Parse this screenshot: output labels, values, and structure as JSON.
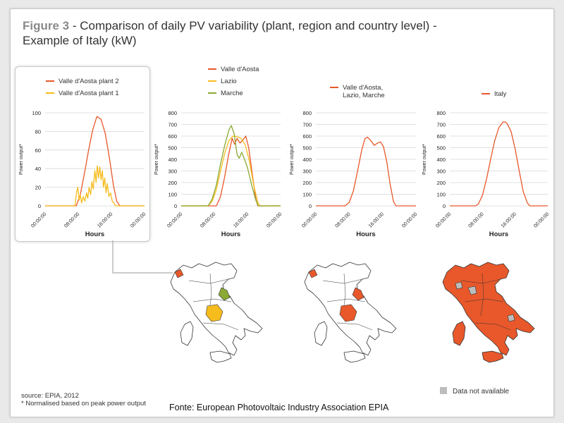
{
  "title": {
    "figure_label": "Figure 3",
    "text": " - Comparison of daily PV variability (plant, region and country level) - Example of Italy (kW)"
  },
  "colors": {
    "orange": "#e8582a",
    "yellow": "#f6bc1d",
    "green": "#8aaa33",
    "gray": "#bdbdbd",
    "grid": "#d6d6d6"
  },
  "chart_data": [
    {
      "type": "line",
      "legend": [
        "Valle d'Aosta plant 2",
        "Valle d'Aosta plant 1"
      ],
      "ylabel": "Power output*",
      "xlabel": "Hours",
      "ylim": [
        0,
        100
      ],
      "yticks": [
        0,
        20,
        40,
        60,
        80,
        100
      ],
      "xticks": [
        "00:00:00",
        "08:00:00",
        "16:00:00",
        "00:00:00"
      ],
      "series": [
        {
          "name": "Valle d'Aosta plant 2",
          "color": "orange",
          "points": [
            [
              0,
              0
            ],
            [
              7.5,
              0
            ],
            [
              8.5,
              12
            ],
            [
              9.5,
              35
            ],
            [
              10.5,
              60
            ],
            [
              11.5,
              82
            ],
            [
              12.5,
              96
            ],
            [
              13.5,
              93
            ],
            [
              14.5,
              78
            ],
            [
              15.5,
              52
            ],
            [
              16.5,
              22
            ],
            [
              17.3,
              5
            ],
            [
              18,
              0
            ],
            [
              24,
              0
            ]
          ]
        },
        {
          "name": "Valle d'Aosta plant 1",
          "color": "yellow",
          "points": [
            [
              0,
              0
            ],
            [
              7.2,
              0
            ],
            [
              7.6,
              15
            ],
            [
              7.9,
              20
            ],
            [
              8.2,
              6
            ],
            [
              8.5,
              12
            ],
            [
              8.8,
              3
            ],
            [
              9.2,
              10
            ],
            [
              9.6,
              5
            ],
            [
              10,
              14
            ],
            [
              10.3,
              8
            ],
            [
              10.6,
              20
            ],
            [
              11,
              12
            ],
            [
              11.3,
              26
            ],
            [
              11.6,
              18
            ],
            [
              12,
              38
            ],
            [
              12.3,
              25
            ],
            [
              12.6,
              43
            ],
            [
              12.9,
              30
            ],
            [
              13.2,
              42
            ],
            [
              13.5,
              28
            ],
            [
              13.8,
              38
            ],
            [
              14.1,
              20
            ],
            [
              14.4,
              30
            ],
            [
              14.7,
              14
            ],
            [
              15,
              24
            ],
            [
              15.4,
              10
            ],
            [
              15.8,
              14
            ],
            [
              16.2,
              5
            ],
            [
              16.6,
              3
            ],
            [
              17,
              0
            ],
            [
              24,
              0
            ]
          ]
        }
      ]
    },
    {
      "type": "line",
      "legend": [
        "Valle d'Aosta",
        "Lazio",
        "Marche"
      ],
      "ylabel": "Power output*",
      "xlabel": "Hours",
      "ylim": [
        0,
        800
      ],
      "yticks": [
        0,
        100,
        200,
        300,
        400,
        500,
        600,
        700,
        800
      ],
      "xticks": [
        "00:00:00",
        "08:00:00",
        "16:00:00",
        "00:00:00"
      ],
      "series": [
        {
          "name": "Valle d'Aosta",
          "color": "orange",
          "points": [
            [
              0,
              0
            ],
            [
              8.5,
              0
            ],
            [
              9.5,
              80
            ],
            [
              10.5,
              250
            ],
            [
              11.5,
              450
            ],
            [
              12.3,
              580
            ],
            [
              12.9,
              530
            ],
            [
              13.5,
              580
            ],
            [
              14.2,
              540
            ],
            [
              15,
              570
            ],
            [
              15.6,
              600
            ],
            [
              16.3,
              500
            ],
            [
              17.2,
              260
            ],
            [
              18,
              60
            ],
            [
              18.5,
              0
            ],
            [
              24,
              0
            ]
          ]
        },
        {
          "name": "Lazio",
          "color": "yellow",
          "points": [
            [
              0,
              0
            ],
            [
              6.5,
              0
            ],
            [
              7.5,
              40
            ],
            [
              8.5,
              140
            ],
            [
              9.5,
              300
            ],
            [
              10.5,
              450
            ],
            [
              11.5,
              560
            ],
            [
              12.5,
              600
            ],
            [
              13.5,
              595
            ],
            [
              14.5,
              580
            ],
            [
              15.5,
              520
            ],
            [
              16.5,
              380
            ],
            [
              17.5,
              180
            ],
            [
              18.5,
              30
            ],
            [
              19,
              0
            ],
            [
              24,
              0
            ]
          ]
        },
        {
          "name": "Marche",
          "color": "green",
          "points": [
            [
              0,
              0
            ],
            [
              6.5,
              0
            ],
            [
              7.5,
              60
            ],
            [
              8.5,
              180
            ],
            [
              9.5,
              360
            ],
            [
              10.5,
              520
            ],
            [
              11.5,
              650
            ],
            [
              12.1,
              690
            ],
            [
              12.8,
              620
            ],
            [
              13.5,
              440
            ],
            [
              14,
              410
            ],
            [
              14.6,
              460
            ],
            [
              15.3,
              400
            ],
            [
              16,
              330
            ],
            [
              17,
              180
            ],
            [
              18,
              50
            ],
            [
              18.6,
              0
            ],
            [
              24,
              0
            ]
          ]
        }
      ]
    },
    {
      "type": "line",
      "legend": [
        "Valle d'Aosta,\nLazio, Marche"
      ],
      "ylabel": "Power output*",
      "xlabel": "Hours",
      "ylim": [
        0,
        800
      ],
      "yticks": [
        0,
        100,
        200,
        300,
        400,
        500,
        600,
        700,
        800
      ],
      "xticks": [
        "00:00:00",
        "08:00:00",
        "16:00:00",
        "00:00:00"
      ],
      "series": [
        {
          "name": "Valle d'Aosta,\nLazio, Marche",
          "color": "orange",
          "points": [
            [
              0,
              0
            ],
            [
              7,
              0
            ],
            [
              8,
              30
            ],
            [
              9,
              130
            ],
            [
              10,
              300
            ],
            [
              11,
              480
            ],
            [
              11.8,
              580
            ],
            [
              12.4,
              590
            ],
            [
              13.2,
              560
            ],
            [
              14,
              520
            ],
            [
              14.8,
              540
            ],
            [
              15.5,
              550
            ],
            [
              16.2,
              510
            ],
            [
              17,
              380
            ],
            [
              17.8,
              190
            ],
            [
              18.6,
              40
            ],
            [
              19.2,
              0
            ],
            [
              24,
              0
            ]
          ]
        }
      ]
    },
    {
      "type": "line",
      "legend": [
        "Italy"
      ],
      "ylabel": "Power output*",
      "xlabel": "Hours",
      "ylim": [
        0,
        800
      ],
      "yticks": [
        0,
        100,
        200,
        300,
        400,
        500,
        600,
        700,
        800
      ],
      "xticks": [
        "00:00:00",
        "08:00:00",
        "16:00:00",
        "00:00:00"
      ],
      "series": [
        {
          "name": "Italy",
          "color": "orange",
          "points": [
            [
              0,
              0
            ],
            [
              6.3,
              0
            ],
            [
              7,
              15
            ],
            [
              8,
              90
            ],
            [
              9,
              230
            ],
            [
              10,
              400
            ],
            [
              11,
              560
            ],
            [
              12,
              670
            ],
            [
              13,
              720
            ],
            [
              13.5,
              722
            ],
            [
              14,
              710
            ],
            [
              15,
              640
            ],
            [
              16,
              490
            ],
            [
              17,
              300
            ],
            [
              18,
              120
            ],
            [
              19,
              25
            ],
            [
              19.6,
              0
            ],
            [
              24,
              0
            ]
          ]
        }
      ]
    }
  ],
  "maps": [
    {
      "name": "map-plants",
      "legend_items": []
    },
    {
      "name": "map-regions"
    },
    {
      "name": "map-country"
    }
  ],
  "footer": {
    "source_label": "source:",
    "source_value": " EPIA, 2012",
    "note": "* Normalised based on peak power output",
    "fonte": "Fonte: European Photovoltaic Industry Association EPIA",
    "na_legend": "Data not available"
  }
}
